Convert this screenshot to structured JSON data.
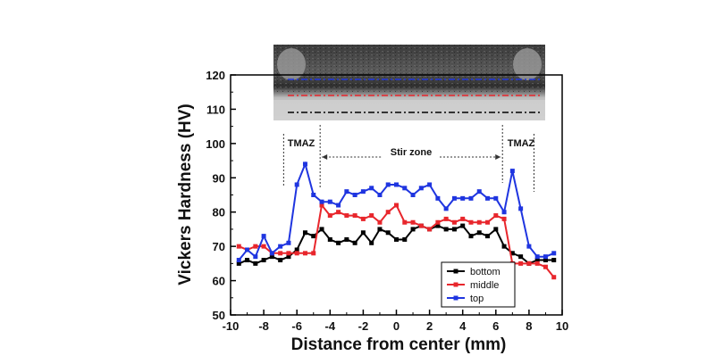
{
  "chart_data": {
    "type": "line",
    "xlabel": "Distance from center (mm)",
    "ylabel": "Vickers Hardness (HV)",
    "xlim": [
      -10,
      10
    ],
    "ylim": [
      50,
      120
    ],
    "x_ticks": [
      -10,
      -8,
      -6,
      -4,
      -2,
      0,
      2,
      4,
      6,
      8,
      10
    ],
    "y_ticks": [
      50,
      60,
      70,
      80,
      90,
      100,
      110,
      120
    ],
    "grid": false,
    "legend_position": "bottom-right",
    "x": [
      -9.5,
      -9.0,
      -8.5,
      -8.0,
      -7.5,
      -7.0,
      -6.5,
      -6.0,
      -5.5,
      -5.0,
      -4.5,
      -4.0,
      -3.5,
      -3.0,
      -2.5,
      -2.0,
      -1.5,
      -1.0,
      -0.5,
      0.0,
      0.5,
      1.0,
      1.5,
      2.0,
      2.5,
      3.0,
      3.5,
      4.0,
      4.5,
      5.0,
      5.5,
      6.0,
      6.5,
      7.0,
      7.5,
      8.0,
      8.5,
      9.0,
      9.5
    ],
    "series": [
      {
        "name": "bottom",
        "color": "#000000",
        "values": [
          65,
          66,
          65,
          66,
          67,
          66,
          67,
          69,
          74,
          73,
          75,
          72,
          71,
          72,
          71,
          74,
          71,
          75,
          74,
          72,
          72,
          75,
          76,
          75,
          76,
          75,
          75,
          76,
          73,
          74,
          73,
          75,
          70,
          68,
          67,
          65,
          66,
          66,
          66
        ]
      },
      {
        "name": "middle",
        "color": "#e8262c",
        "values": [
          70,
          69,
          70,
          70,
          68,
          68,
          68,
          68,
          68,
          68,
          82,
          79,
          80,
          79,
          79,
          78,
          79,
          77,
          80,
          82,
          77,
          77,
          76,
          75,
          77,
          78,
          77,
          78,
          77,
          77,
          77,
          79,
          78,
          65,
          65,
          65,
          65,
          64,
          61
        ]
      },
      {
        "name": "top",
        "color": "#1f35e0",
        "values": [
          66,
          69,
          67,
          73,
          68,
          70,
          71,
          88,
          94,
          85,
          83,
          83,
          82,
          86,
          85,
          86,
          87,
          85,
          88,
          88,
          87,
          85,
          87,
          88,
          84,
          81,
          84,
          84,
          84,
          86,
          84,
          84,
          80,
          92,
          81,
          70,
          67,
          67,
          68
        ]
      }
    ],
    "annotations": {
      "tmaz_left": "TMAZ",
      "tmaz_right": "TMAZ",
      "stir_zone": "Stir zone",
      "tmaz_left_bounds": [
        -6.8,
        -4.6
      ],
      "tmaz_right_bounds": [
        6.4,
        8.3
      ],
      "stir_zone_bounds": [
        -4.6,
        6.4
      ]
    },
    "inset_image": {
      "description_lines": [
        {
          "color": "#1f35e0",
          "style": "dash-dot"
        },
        {
          "color": "#e8262c",
          "style": "dash-dot"
        },
        {
          "color": "#000000",
          "style": "dash-dot"
        }
      ]
    }
  }
}
